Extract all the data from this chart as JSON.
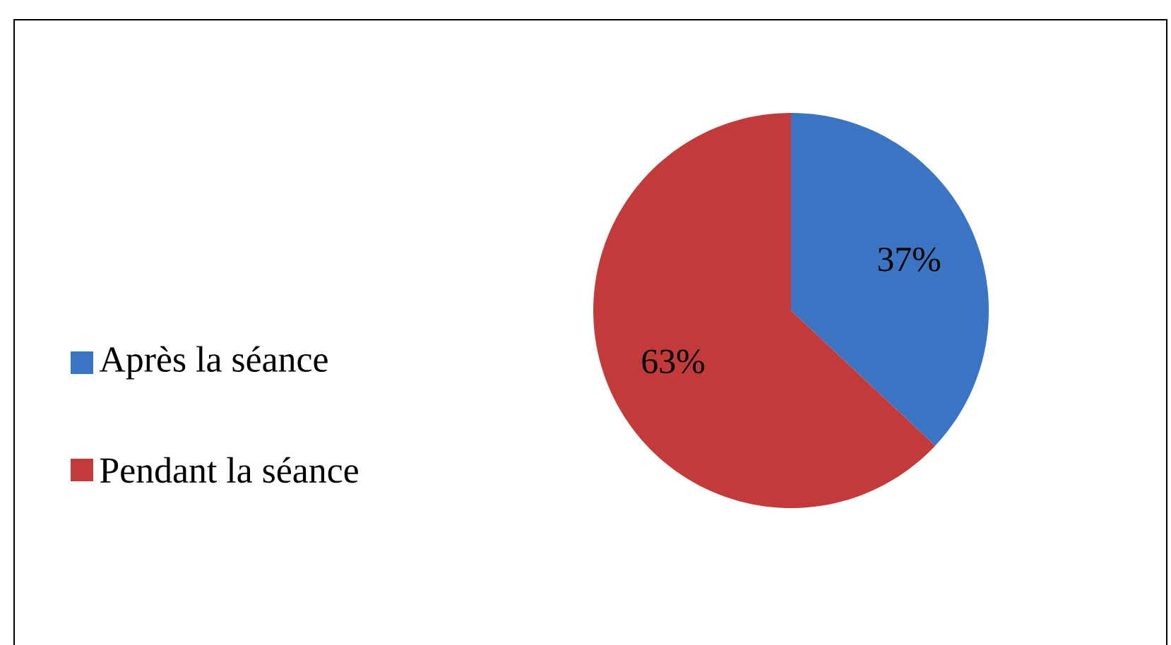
{
  "chart_data": {
    "type": "pie",
    "categories": [
      "Après la séance",
      "Pendant la séance"
    ],
    "values": [
      37,
      63
    ],
    "colors": [
      "#3a74c2",
      "#c23b3a"
    ],
    "value_labels": [
      "37%",
      "63%"
    ],
    "legend": "left"
  }
}
